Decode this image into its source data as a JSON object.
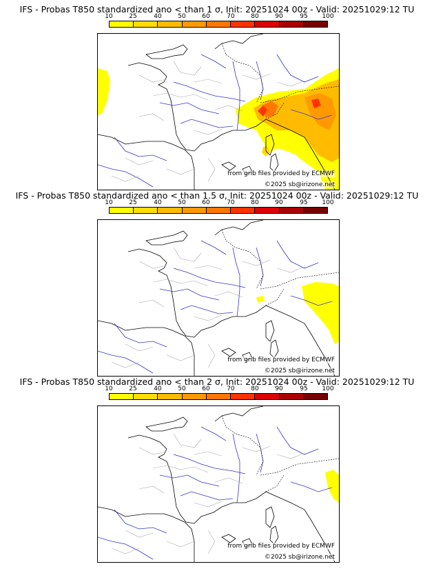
{
  "panels": [
    {
      "title": "IFS - Probas T850  standardized ano < than 1 σ, Init: 20251024 00z - Valid: 20251029:12 TU",
      "threshold": "1 σ"
    },
    {
      "title": "IFS - Probas T850  standardized ano < than 1.5 σ, Init: 20251024 00z - Valid: 20251029:12 TU",
      "threshold": "1.5 σ"
    },
    {
      "title": "IFS - Probas T850  standardized ano < than 2 σ, Init: 20251024 00z - Valid: 20251029:12 TU",
      "threshold": "2 σ"
    }
  ],
  "colorbar": {
    "ticks": [
      "10",
      "25",
      "40",
      "50",
      "60",
      "70",
      "80",
      "90",
      "95",
      "100"
    ],
    "colors": [
      "#ffff00",
      "#ffdd00",
      "#ffbb00",
      "#ff9900",
      "#ff7700",
      "#ff3300",
      "#dd0000",
      "#aa0000",
      "#770000"
    ]
  },
  "map": {
    "source_credit": "from grib files provided by ECMWF",
    "copyright": "©2025 sb@irizone.net"
  }
}
